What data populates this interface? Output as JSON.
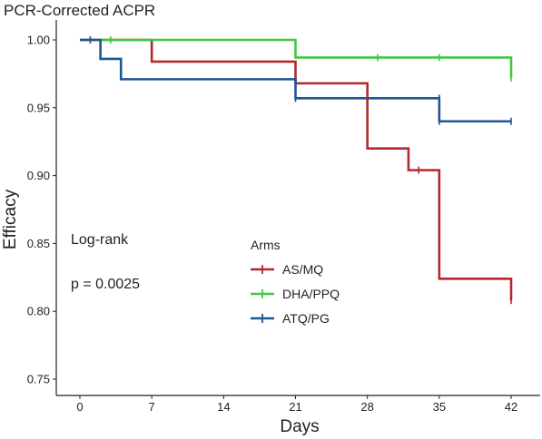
{
  "chart_data": {
    "type": "step-line",
    "title": "PCR-Corrected ACPR",
    "xlabel": "Days",
    "ylabel": "Efficacy",
    "xlim": [
      0,
      42
    ],
    "ylim": [
      0.75,
      1.0
    ],
    "xticks": [
      0,
      7,
      14,
      21,
      28,
      35,
      42
    ],
    "yticks": [
      "0.75",
      "0.80",
      "0.85",
      "0.90",
      "0.95",
      "1.00"
    ],
    "grid": false,
    "annotations": [
      "Log-rank",
      "p = 0.0025"
    ],
    "legend": {
      "title": "Arms",
      "position": "center-right"
    },
    "series": [
      {
        "name": "AS/MQ",
        "color": "#b2282e",
        "steps": [
          [
            0,
            1.0
          ],
          [
            7,
            0.984
          ],
          [
            21,
            0.968
          ],
          [
            28,
            0.92
          ],
          [
            32,
            0.904
          ],
          [
            35,
            0.824
          ],
          [
            42,
            0.808
          ]
        ],
        "censored": [
          [
            1,
            1.0
          ],
          [
            33,
            0.904
          ],
          [
            42,
            0.808
          ]
        ]
      },
      {
        "name": "DHA/PPQ",
        "color": "#3ec93e",
        "steps": [
          [
            0,
            1.0
          ],
          [
            21,
            0.987
          ],
          [
            42,
            0.972
          ]
        ],
        "censored": [
          [
            3,
            1.0
          ],
          [
            29,
            0.987
          ],
          [
            35,
            0.987
          ],
          [
            42,
            0.972
          ]
        ]
      },
      {
        "name": "ATQ/PG",
        "color": "#1f5694",
        "steps": [
          [
            0,
            1.0
          ],
          [
            2,
            0.986
          ],
          [
            4,
            0.971
          ],
          [
            21,
            0.957
          ],
          [
            35,
            0.94
          ],
          [
            42,
            0.94
          ]
        ],
        "censored": [
          [
            1,
            1.0
          ],
          [
            21,
            0.957
          ],
          [
            35,
            0.957
          ],
          [
            35,
            0.94
          ],
          [
            42,
            0.94
          ]
        ]
      }
    ]
  }
}
